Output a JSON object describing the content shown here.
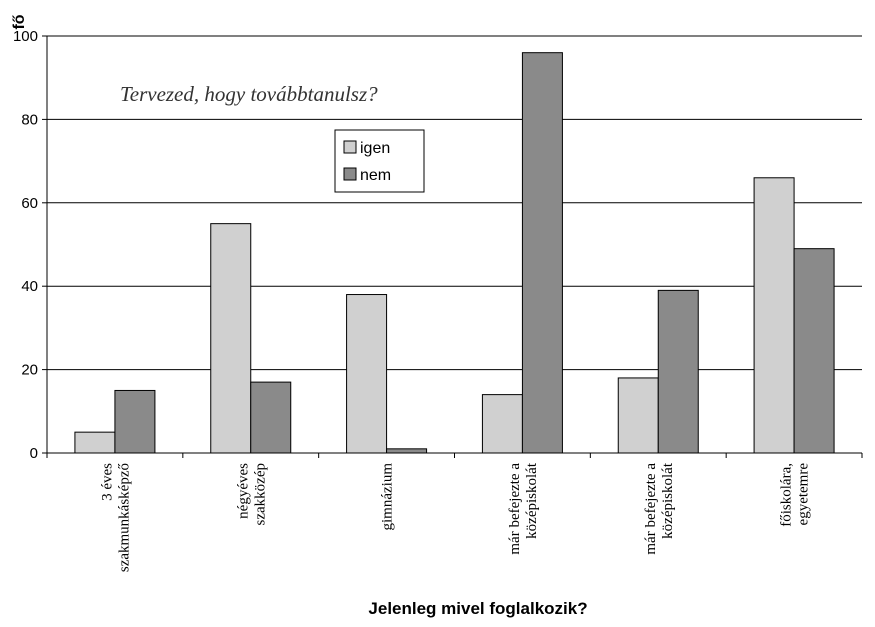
{
  "chart_data": {
    "type": "bar",
    "annotation": "Tervezed, hogy továbbtanulsz?",
    "xlabel": "Jelenleg mivel foglalkozik?",
    "ylabel": "fő",
    "ylim": [
      0,
      100
    ],
    "yticks": [
      0,
      20,
      40,
      60,
      80,
      100
    ],
    "grid": true,
    "legend_position": "top-center",
    "categories": [
      [
        "3 éves",
        "szakmunkásképző"
      ],
      [
        "négyéves",
        "szakközép"
      ],
      [
        "gimnázium"
      ],
      [
        "már befejezte a",
        "középiskolát"
      ],
      [
        "már befejezte a",
        "középiskolát"
      ],
      [
        "főiskolára,",
        "egyetemre"
      ]
    ],
    "series": [
      {
        "name": "igen",
        "color": "#d0d0d0",
        "values": [
          5,
          55,
          38,
          14,
          18,
          66
        ]
      },
      {
        "name": "nem",
        "color": "#8a8a8a",
        "values": [
          15,
          17,
          1,
          96,
          39,
          49
        ]
      }
    ]
  }
}
